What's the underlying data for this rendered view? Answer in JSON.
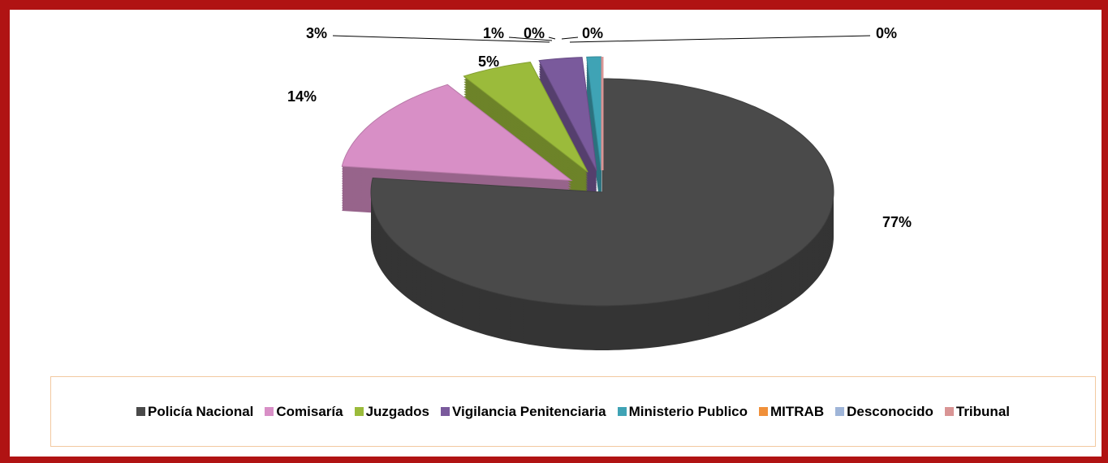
{
  "chart_data": {
    "type": "pie",
    "categories": [
      "Policía Nacional",
      "Comisaría",
      "Juzgados",
      "Vigilancia Penitenciaria",
      "Ministerio Publico",
      "MITRAB",
      "Desconocido",
      "Tribunal"
    ],
    "values": [
      77,
      14,
      5,
      3,
      1,
      0,
      0,
      0
    ],
    "value_labels": [
      "77%",
      "14%",
      "5%",
      "3%",
      "1%",
      "0%",
      "0%",
      "0%"
    ],
    "colors": [
      "#4a4a4a",
      "#d88fc6",
      "#9bbb3b",
      "#7a5a9c",
      "#3fa3b5",
      "#f0903a",
      "#9fb5d8",
      "#d99595"
    ],
    "legend": "bottom"
  }
}
